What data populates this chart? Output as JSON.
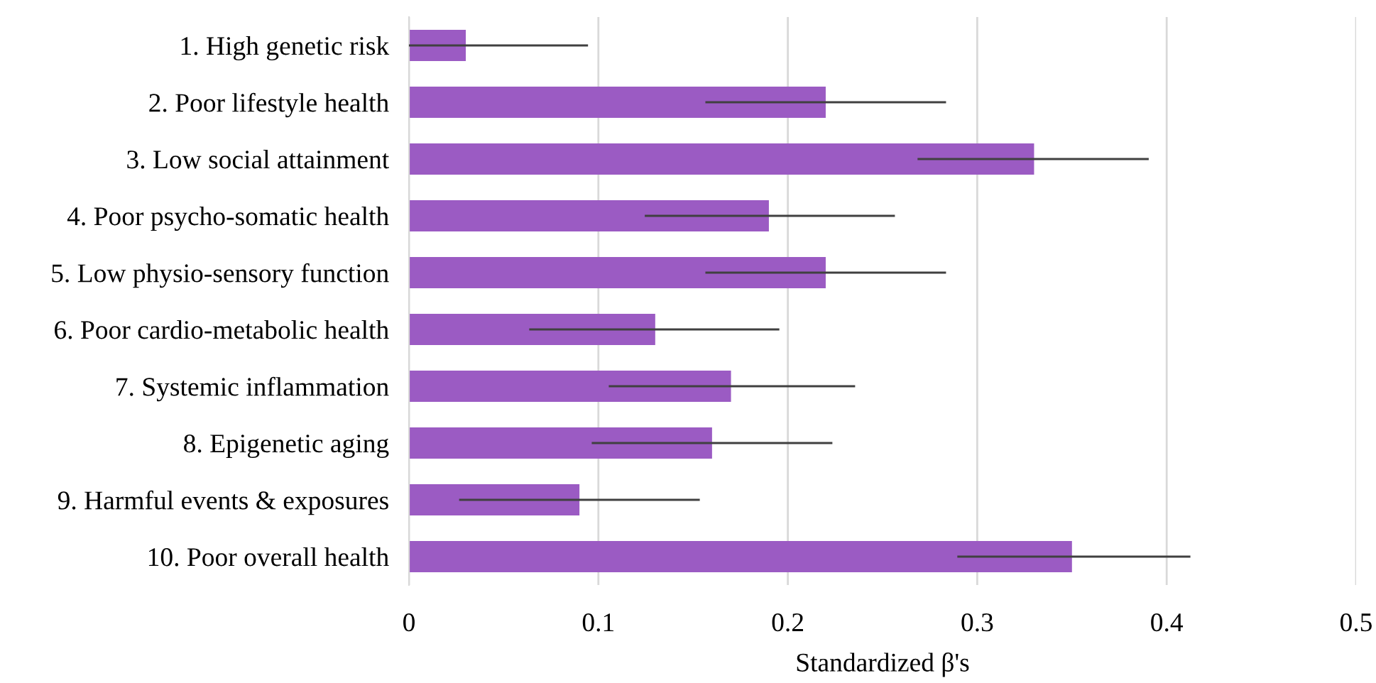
{
  "chart_data": {
    "type": "bar",
    "orientation": "horizontal",
    "xlabel": "Standardized β's",
    "categories": [
      "1. High genetic risk",
      "2. Poor lifestyle health",
      "3. Low social attainment",
      "4. Poor psycho-somatic health",
      "5. Low physio-sensory function",
      "6. Poor cardio-metabolic health",
      "7. Systemic inflammation",
      "8. Epigenetic aging",
      "9. Harmful events & exposures",
      "10. Poor overall health"
    ],
    "values": [
      0.03,
      0.22,
      0.33,
      0.19,
      0.22,
      0.13,
      0.17,
      0.16,
      0.09,
      0.35
    ],
    "errors": [
      [
        0,
        0.094
      ],
      [
        0.157,
        0.283
      ],
      [
        0.269,
        0.39
      ],
      [
        0.125,
        0.256
      ],
      [
        0.157,
        0.283
      ],
      [
        0.064,
        0.195
      ],
      [
        0.106,
        0.235
      ],
      [
        0.097,
        0.223
      ],
      [
        0.027,
        0.153
      ],
      [
        0.29,
        0.412
      ]
    ],
    "color": "#9b5bc3",
    "xlim": [
      0,
      0.5
    ],
    "xticks": [
      0,
      0.1,
      0.2,
      0.3,
      0.4,
      0.5
    ],
    "grid": "x",
    "legend": false
  }
}
